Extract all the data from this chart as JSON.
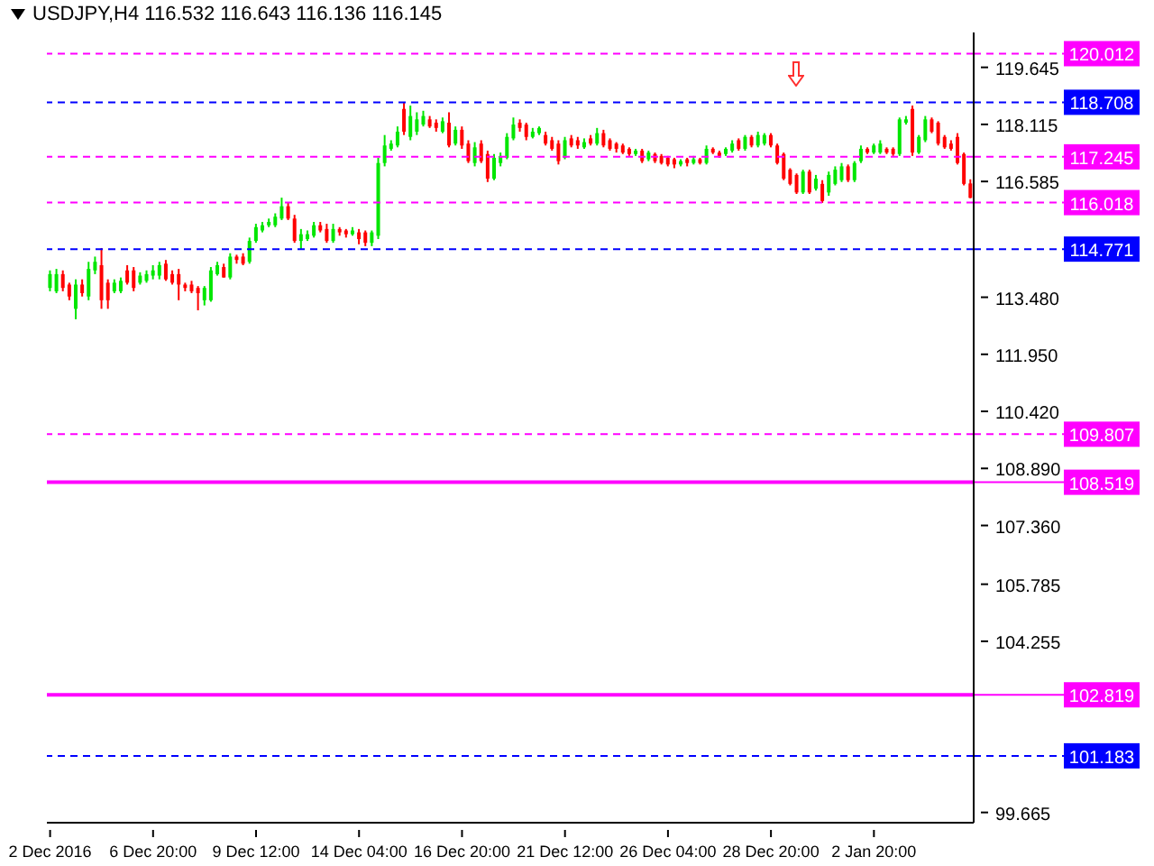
{
  "chart_data": {
    "type": "candlestick",
    "title": "USDJPY,H4 116.532 116.643 116.136 116.145",
    "categories": [
      "2 Dec 2016",
      null,
      null,
      null,
      null,
      null,
      null,
      null,
      null,
      null,
      null,
      null,
      null,
      null,
      null,
      null,
      "6 Dec 20:00",
      null,
      null,
      null,
      null,
      null,
      null,
      null,
      null,
      null,
      null,
      null,
      null,
      null,
      null,
      null,
      "9 Dec 12:00",
      null,
      null,
      null,
      null,
      null,
      null,
      null,
      null,
      null,
      null,
      null,
      null,
      null,
      null,
      null,
      "14 Dec 04:00",
      null,
      null,
      null,
      null,
      null,
      null,
      null,
      null,
      null,
      null,
      null,
      null,
      null,
      null,
      null,
      "16 Dec 20:00",
      null,
      null,
      null,
      null,
      null,
      null,
      null,
      null,
      null,
      null,
      null,
      null,
      null,
      null,
      null,
      "21 Dec 12:00",
      null,
      null,
      null,
      null,
      null,
      null,
      null,
      null,
      null,
      null,
      null,
      null,
      null,
      null,
      null,
      "26 Dec 04:00",
      null,
      null,
      null,
      null,
      null,
      null,
      null,
      null,
      null,
      null,
      null,
      null,
      null,
      null,
      null,
      "28 Dec 20:00",
      null,
      null,
      null,
      null,
      null,
      null,
      null,
      null,
      null,
      null,
      null,
      null,
      null,
      null,
      null,
      "2 Jan 20:00",
      null,
      null,
      null,
      null,
      null,
      null,
      null,
      null,
      null,
      null,
      null,
      null,
      null,
      null,
      null
    ],
    "ohlc": [
      [
        113.73,
        114.2,
        113.64,
        114.1
      ],
      [
        113.64,
        114.24,
        113.59,
        114.1
      ],
      [
        114.1,
        114.2,
        113.64,
        113.73
      ],
      [
        113.82,
        113.87,
        113.4,
        113.5
      ],
      [
        113.17,
        113.96,
        112.89,
        113.82
      ],
      [
        113.82,
        113.96,
        113.5,
        113.59
      ],
      [
        113.5,
        114.43,
        113.4,
        114.24
      ],
      [
        114.2,
        114.57,
        114.1,
        114.43
      ],
      [
        114.34,
        114.8,
        113.17,
        113.4
      ],
      [
        113.87,
        113.96,
        113.17,
        113.4
      ],
      [
        113.64,
        113.96,
        113.59,
        113.87
      ],
      [
        113.64,
        114.01,
        113.59,
        113.92
      ],
      [
        114.2,
        114.34,
        113.82,
        113.87
      ],
      [
        114.2,
        114.29,
        113.64,
        113.73
      ],
      [
        113.87,
        114.15,
        113.82,
        114.06
      ],
      [
        113.92,
        114.2,
        113.87,
        114.1
      ],
      [
        114.06,
        114.34,
        113.96,
        114.2
      ],
      [
        114.06,
        114.43,
        113.96,
        114.34
      ],
      [
        114.38,
        114.48,
        113.92,
        113.96
      ],
      [
        114.1,
        114.2,
        113.82,
        113.87
      ],
      [
        114.1,
        114.24,
        113.4,
        113.82
      ],
      [
        113.82,
        113.87,
        113.64,
        113.73
      ],
      [
        113.82,
        113.92,
        113.59,
        113.64
      ],
      [
        113.73,
        113.78,
        113.13,
        113.59
      ],
      [
        113.4,
        113.78,
        113.26,
        113.73
      ],
      [
        113.4,
        114.29,
        113.36,
        114.2
      ],
      [
        114.1,
        114.43,
        114.06,
        114.34
      ],
      [
        114.29,
        114.38,
        114.01,
        114.01
      ],
      [
        114.01,
        114.66,
        113.96,
        114.57
      ],
      [
        114.57,
        114.62,
        114.38,
        114.48
      ],
      [
        114.57,
        114.66,
        114.34,
        114.38
      ],
      [
        114.43,
        115.08,
        114.38,
        114.99
      ],
      [
        114.99,
        115.45,
        114.94,
        115.36
      ],
      [
        115.27,
        115.5,
        115.22,
        115.41
      ],
      [
        115.41,
        115.59,
        115.36,
        115.5
      ],
      [
        115.41,
        115.73,
        115.36,
        115.64
      ],
      [
        115.59,
        116.15,
        115.55,
        115.92
      ],
      [
        115.92,
        116.01,
        115.55,
        115.59
      ],
      [
        115.59,
        115.69,
        114.94,
        114.99
      ],
      [
        114.99,
        115.31,
        114.76,
        115.17
      ],
      [
        115.04,
        115.27,
        114.99,
        115.17
      ],
      [
        115.13,
        115.5,
        115.08,
        115.41
      ],
      [
        115.41,
        115.5,
        115.22,
        115.27
      ],
      [
        115.31,
        115.45,
        114.94,
        114.99
      ],
      [
        114.99,
        115.45,
        114.94,
        115.31
      ],
      [
        115.31,
        115.36,
        115.13,
        115.22
      ],
      [
        115.27,
        115.31,
        115.08,
        115.17
      ],
      [
        115.17,
        115.36,
        115.13,
        115.27
      ],
      [
        115.22,
        115.31,
        114.9,
        115.04
      ],
      [
        115.22,
        115.27,
        114.85,
        114.94
      ],
      [
        114.94,
        115.27,
        114.85,
        115.22
      ],
      [
        115.13,
        117.22,
        115.04,
        117.08
      ],
      [
        117.08,
        117.83,
        116.99,
        117.55
      ],
      [
        117.46,
        117.69,
        117.41,
        117.6
      ],
      [
        117.55,
        118.06,
        117.5,
        117.92
      ],
      [
        118.53,
        118.71,
        117.83,
        117.92
      ],
      [
        117.78,
        118.62,
        117.69,
        118.34
      ],
      [
        117.92,
        118.44,
        117.83,
        118.25
      ],
      [
        118.11,
        118.48,
        118.06,
        118.34
      ],
      [
        118.25,
        118.34,
        118.02,
        118.06
      ],
      [
        118.16,
        118.25,
        117.92,
        118.02
      ],
      [
        117.92,
        118.3,
        117.88,
        118.2
      ],
      [
        118.16,
        118.44,
        117.5,
        117.55
      ],
      [
        117.6,
        118.06,
        117.55,
        117.97
      ],
      [
        117.97,
        118.06,
        117.46,
        117.55
      ],
      [
        117.6,
        117.69,
        117.08,
        117.13
      ],
      [
        117.08,
        117.64,
        116.99,
        117.5
      ],
      [
        117.6,
        117.69,
        117.08,
        117.13
      ],
      [
        117.32,
        117.41,
        116.57,
        116.66
      ],
      [
        116.66,
        117.32,
        116.62,
        117.22
      ],
      [
        117.08,
        117.36,
        116.99,
        117.27
      ],
      [
        117.22,
        117.88,
        117.18,
        117.78
      ],
      [
        117.74,
        118.3,
        117.69,
        118.11
      ],
      [
        118.16,
        118.25,
        117.92,
        118.02
      ],
      [
        118.11,
        118.16,
        117.69,
        117.78
      ],
      [
        117.78,
        118.02,
        117.74,
        117.92
      ],
      [
        117.88,
        118.06,
        117.83,
        118.02
      ],
      [
        117.83,
        117.92,
        117.55,
        117.6
      ],
      [
        117.69,
        117.78,
        117.41,
        117.46
      ],
      [
        117.6,
        117.69,
        117.04,
        117.13
      ],
      [
        117.22,
        117.78,
        117.18,
        117.69
      ],
      [
        117.74,
        117.83,
        117.5,
        117.55
      ],
      [
        117.69,
        117.78,
        117.46,
        117.55
      ],
      [
        117.5,
        117.74,
        117.46,
        117.64
      ],
      [
        117.74,
        117.83,
        117.55,
        117.6
      ],
      [
        117.6,
        118.02,
        117.55,
        117.88
      ],
      [
        117.88,
        117.97,
        117.5,
        117.55
      ],
      [
        117.69,
        117.74,
        117.41,
        117.46
      ],
      [
        117.6,
        117.64,
        117.36,
        117.46
      ],
      [
        117.55,
        117.6,
        117.32,
        117.36
      ],
      [
        117.46,
        117.5,
        117.27,
        117.32
      ],
      [
        117.32,
        117.46,
        117.27,
        117.41
      ],
      [
        117.41,
        117.46,
        117.08,
        117.13
      ],
      [
        117.18,
        117.41,
        117.13,
        117.36
      ],
      [
        117.32,
        117.36,
        117.08,
        117.13
      ],
      [
        117.27,
        117.32,
        117.04,
        117.08
      ],
      [
        117.22,
        117.27,
        116.99,
        117.04
      ],
      [
        117.18,
        117.22,
        116.94,
        117.04
      ],
      [
        117.04,
        117.18,
        116.99,
        117.13
      ],
      [
        117.18,
        117.22,
        116.99,
        117.08
      ],
      [
        117.08,
        117.27,
        117.04,
        117.18
      ],
      [
        117.18,
        117.22,
        117.04,
        117.08
      ],
      [
        117.08,
        117.55,
        117.04,
        117.46
      ],
      [
        117.46,
        117.5,
        117.32,
        117.36
      ],
      [
        117.36,
        117.41,
        117.22,
        117.27
      ],
      [
        117.32,
        117.5,
        117.27,
        117.46
      ],
      [
        117.41,
        117.69,
        117.36,
        117.6
      ],
      [
        117.69,
        117.74,
        117.41,
        117.46
      ],
      [
        117.46,
        117.83,
        117.41,
        117.78
      ],
      [
        117.78,
        117.83,
        117.5,
        117.55
      ],
      [
        117.55,
        117.92,
        117.5,
        117.83
      ],
      [
        117.6,
        117.88,
        117.55,
        117.83
      ],
      [
        117.83,
        117.88,
        117.5,
        117.55
      ],
      [
        117.55,
        117.6,
        117.04,
        117.08
      ],
      [
        117.32,
        117.36,
        116.62,
        116.66
      ],
      [
        116.9,
        116.94,
        116.48,
        116.52
      ],
      [
        116.76,
        116.8,
        116.25,
        116.29
      ],
      [
        116.29,
        116.9,
        116.25,
        116.85
      ],
      [
        116.85,
        116.9,
        116.25,
        116.29
      ],
      [
        116.39,
        116.76,
        116.34,
        116.66
      ],
      [
        116.52,
        116.62,
        116.01,
        116.06
      ],
      [
        116.29,
        116.85,
        116.2,
        116.76
      ],
      [
        116.52,
        116.99,
        116.48,
        116.9
      ],
      [
        116.62,
        117.08,
        116.57,
        116.99
      ],
      [
        116.99,
        117.04,
        116.57,
        116.62
      ],
      [
        116.62,
        117.13,
        116.57,
        117.08
      ],
      [
        117.13,
        117.55,
        117.08,
        117.46
      ],
      [
        117.46,
        117.5,
        117.32,
        117.36
      ],
      [
        117.36,
        117.6,
        117.32,
        117.55
      ],
      [
        117.36,
        117.69,
        117.32,
        117.6
      ],
      [
        117.46,
        117.5,
        117.32,
        117.36
      ],
      [
        117.46,
        117.5,
        117.27,
        117.32
      ],
      [
        117.32,
        118.3,
        117.27,
        118.25
      ],
      [
        118.16,
        118.34,
        118.11,
        118.25
      ],
      [
        118.53,
        118.62,
        117.27,
        117.36
      ],
      [
        117.36,
        117.83,
        117.32,
        117.78
      ],
      [
        117.69,
        118.34,
        117.64,
        118.25
      ],
      [
        118.25,
        118.3,
        117.88,
        117.92
      ],
      [
        118.16,
        118.2,
        117.55,
        117.6
      ],
      [
        117.78,
        117.83,
        117.46,
        117.5
      ],
      [
        117.6,
        117.69,
        117.41,
        117.46
      ],
      [
        117.78,
        117.88,
        117.04,
        117.08
      ],
      [
        117.32,
        117.36,
        116.48,
        116.52
      ],
      [
        116.532,
        116.643,
        116.136,
        116.145
      ]
    ],
    "ylim": [
      99.39,
      120.58
    ],
    "yticks": [
      {
        "value": 119.645,
        "label": "119.645"
      },
      {
        "value": 118.115,
        "label": "118.115"
      },
      {
        "value": 116.585,
        "label": "116.585"
      },
      {
        "value": 113.48,
        "label": "113.480"
      },
      {
        "value": 111.95,
        "label": "111.950"
      },
      {
        "value": 110.42,
        "label": "110.420"
      },
      {
        "value": 108.89,
        "label": "108.890"
      },
      {
        "value": 107.36,
        "label": "107.360"
      },
      {
        "value": 105.785,
        "label": "105.785"
      },
      {
        "value": 104.255,
        "label": "104.255"
      },
      {
        "value": 99.665,
        "label": "99.665"
      }
    ],
    "ref_lines": [
      {
        "axis": "y",
        "value": 120.012,
        "label": "120.012",
        "color": "#ff00ff",
        "line_style": "dashed"
      },
      {
        "axis": "y",
        "value": 118.708,
        "label": "118.708",
        "color": "#0000ff",
        "line_style": "dashed"
      },
      {
        "axis": "y",
        "value": 117.245,
        "label": "117.245",
        "color": "#ff00ff",
        "line_style": "dashed"
      },
      {
        "axis": "y",
        "value": 116.018,
        "label": "116.018",
        "color": "#ff00ff",
        "line_style": "dashed"
      },
      {
        "axis": "y",
        "value": 114.771,
        "label": "114.771",
        "color": "#0000ff",
        "line_style": "dashed"
      },
      {
        "axis": "y",
        "value": 109.807,
        "label": "109.807",
        "color": "#ff00ff",
        "line_style": "dashed"
      },
      {
        "axis": "y",
        "value": 108.519,
        "label": "108.519",
        "color": "#ff00ff",
        "line_style": "solid"
      },
      {
        "axis": "y",
        "value": 102.819,
        "label": "102.819",
        "color": "#ff00ff",
        "line_style": "solid"
      },
      {
        "axis": "y",
        "value": 101.183,
        "label": "101.183",
        "color": "#0000ff",
        "line_style": "dashed"
      }
    ]
  }
}
